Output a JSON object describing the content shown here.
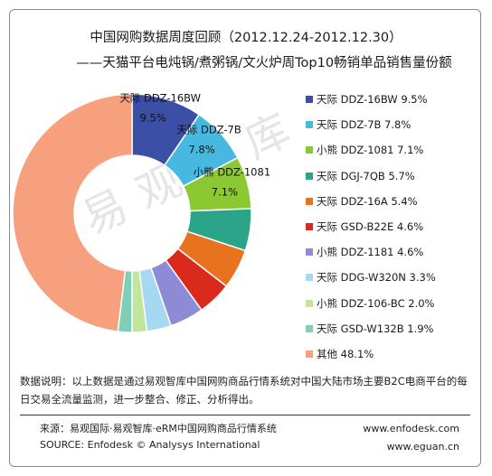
{
  "header": {
    "title_line1": "中国网购数据周度回顾（2012.12.24-2012.12.30）",
    "title_line2": "——天猫平台电炖锅/煮粥锅/文火炉周Top10畅销单品销售量份额"
  },
  "watermark_text": "易观智库",
  "chart_data": {
    "type": "pie",
    "donut": true,
    "categories": [
      "天际 DDZ-16BW",
      "天际 DDZ-7B",
      "小熊 DDZ-1081",
      "天际 DGJ-7QB",
      "天际 DDZ-16A",
      "天际 GSD-B22E",
      "小熊 DDZ-1181",
      "天际 DDG-W320N",
      "小熊 DDZ-106-BC",
      "天际 GSD-W132B",
      "其他"
    ],
    "values": [
      9.5,
      7.8,
      7.1,
      5.7,
      5.4,
      4.6,
      4.6,
      3.3,
      2.0,
      1.9,
      48.1
    ],
    "value_labels": [
      "9.5%",
      "7.8%",
      "7.1%",
      "5.7%",
      "5.4%",
      "4.6%",
      "4.6%",
      "3.3%",
      "2.0%",
      "1.9%",
      "48.1%"
    ],
    "colors": [
      "#3b4fa6",
      "#47b8e0",
      "#8bc832",
      "#2aa58a",
      "#e8731e",
      "#d92a1c",
      "#8e8ad6",
      "#a6d8f2",
      "#c2e59a",
      "#7dcfb7",
      "#f7a07e"
    ],
    "slice_labels_shown": 3,
    "legend_position": "right"
  },
  "notes": {
    "text": "数据说明：以上数据是通过易观智库中国网购商品行情系统对中国大陆市场主要B2C电商平台的每日交易全流量监测，进一步整合、修正、分析得出。"
  },
  "footer": {
    "source_cn": "来源：易观国际·易观智库·eRM中国网购商品行情系统",
    "source_en": "SOURCE: Enfodesk © Analysys International",
    "url1": "www.enfodesk.com",
    "url2": "www.eguan.cn"
  }
}
